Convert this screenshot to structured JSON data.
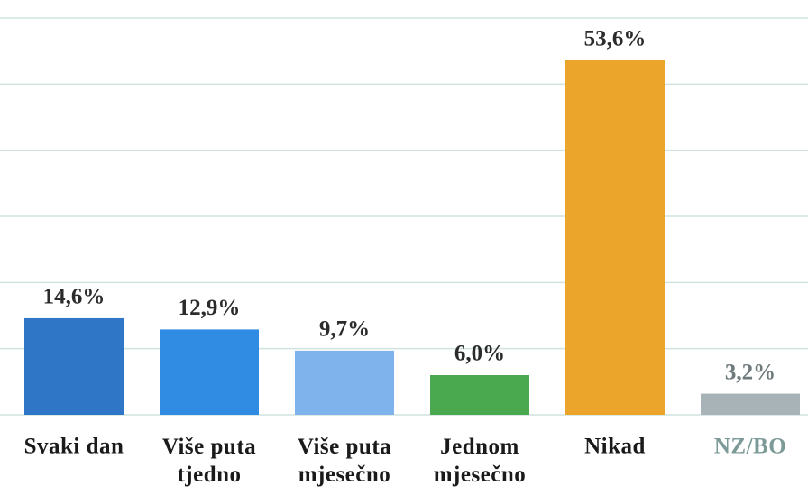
{
  "chart_data": {
    "type": "bar",
    "categories": [
      "Svaki dan",
      "Više puta tjedno",
      "Više puta mjesečno",
      "Jednom mjesečno",
      "Nikad",
      "NZ/BO"
    ],
    "values": [
      14.6,
      12.9,
      9.7,
      6.0,
      53.6,
      3.2
    ],
    "value_labels": [
      "14,6%",
      "12,9%",
      "9,7%",
      "6,0%",
      "53,6%",
      "3,2%"
    ],
    "colors": [
      "#2f77c6",
      "#2f8ce2",
      "#7fb3eb",
      "#4aa84f",
      "#eca52b",
      "#a7b3b6"
    ],
    "label_colors": [
      "#1a1a1a",
      "#1a1a1a",
      "#1a1a1a",
      "#1a1a1a",
      "#1a1a1a",
      "#7c9b98"
    ],
    "ylim": [
      0,
      60
    ],
    "yticks": [
      0,
      10,
      20,
      30,
      40,
      50,
      60
    ],
    "grid": true
  }
}
